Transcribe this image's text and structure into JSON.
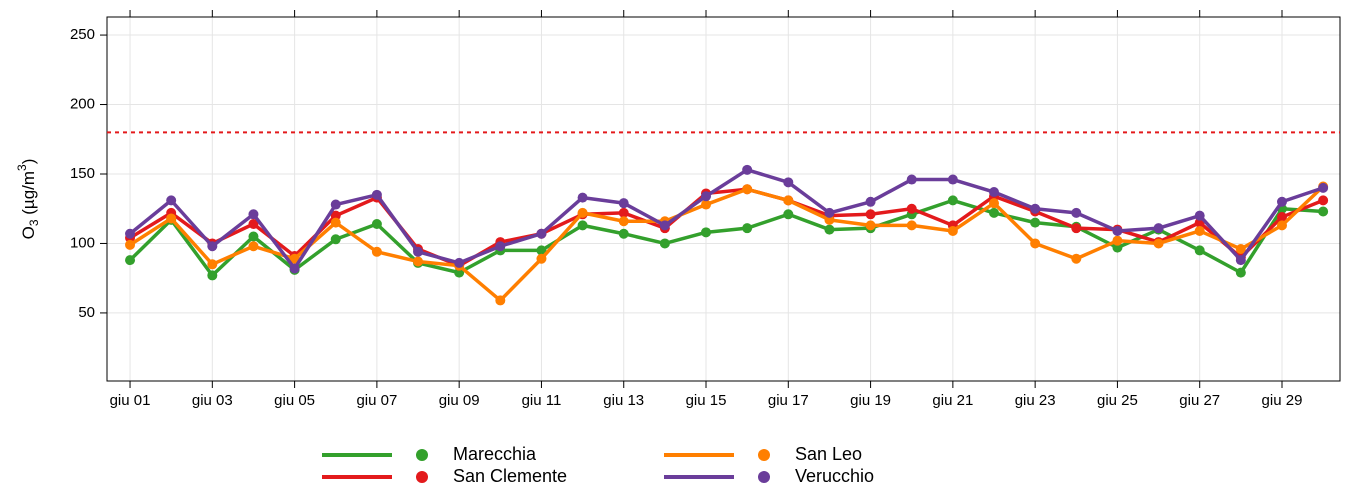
{
  "chart_data": {
    "type": "line",
    "y_label": [
      "O",
      "3",
      " (µg/m",
      "3",
      ")"
    ],
    "categories": [
      "giu 01",
      null,
      "giu 03",
      null,
      "giu 05",
      null,
      "giu 07",
      null,
      "giu 09",
      null,
      "giu 11",
      null,
      "giu 13",
      null,
      "giu 15",
      null,
      "giu 17",
      null,
      "giu 19",
      null,
      "giu 21",
      null,
      "giu 23",
      null,
      "giu 25",
      null,
      "giu 27",
      null,
      "giu 29",
      null
    ],
    "series": [
      {
        "name": "Marecchia",
        "color": "#33a02c",
        "values": [
          88,
          117,
          77,
          105,
          81,
          103,
          114,
          86,
          79,
          95,
          95,
          113,
          107,
          100,
          108,
          111,
          121,
          110,
          111,
          121,
          131,
          122,
          115,
          112,
          97,
          110,
          95,
          79,
          125,
          123
        ]
      },
      {
        "name": "San Clemente",
        "color": "#e31a1c",
        "values": [
          104,
          122,
          100,
          114,
          91,
          120,
          133,
          96,
          84,
          101,
          107,
          121,
          122,
          111,
          136,
          139,
          131,
          120,
          121,
          125,
          113,
          134,
          123,
          111,
          110,
          101,
          115,
          90,
          119,
          131
        ]
      },
      {
        "name": "San Leo",
        "color": "#ff7f00",
        "values": [
          99,
          118,
          85,
          98,
          89,
          115,
          94,
          87,
          84,
          59,
          89,
          122,
          116,
          116,
          128,
          139,
          131,
          117,
          113,
          113,
          109,
          129,
          100,
          89,
          102,
          100,
          109,
          96,
          113,
          141
        ]
      },
      {
        "name": "Verucchio",
        "color": "#6a3d9a",
        "values": [
          107,
          131,
          98,
          121,
          82,
          128,
          135,
          94,
          86,
          98,
          107,
          133,
          129,
          113,
          134,
          153,
          144,
          122,
          130,
          146,
          146,
          137,
          125,
          122,
          109,
          111,
          120,
          88,
          130,
          140
        ]
      }
    ],
    "threshold": {
      "value": 180,
      "color": "#e31a1c"
    },
    "ylim": [
      1,
      263
    ],
    "yticks": [
      50,
      100,
      150,
      200,
      250
    ],
    "grid": true,
    "legend": "bottom"
  }
}
